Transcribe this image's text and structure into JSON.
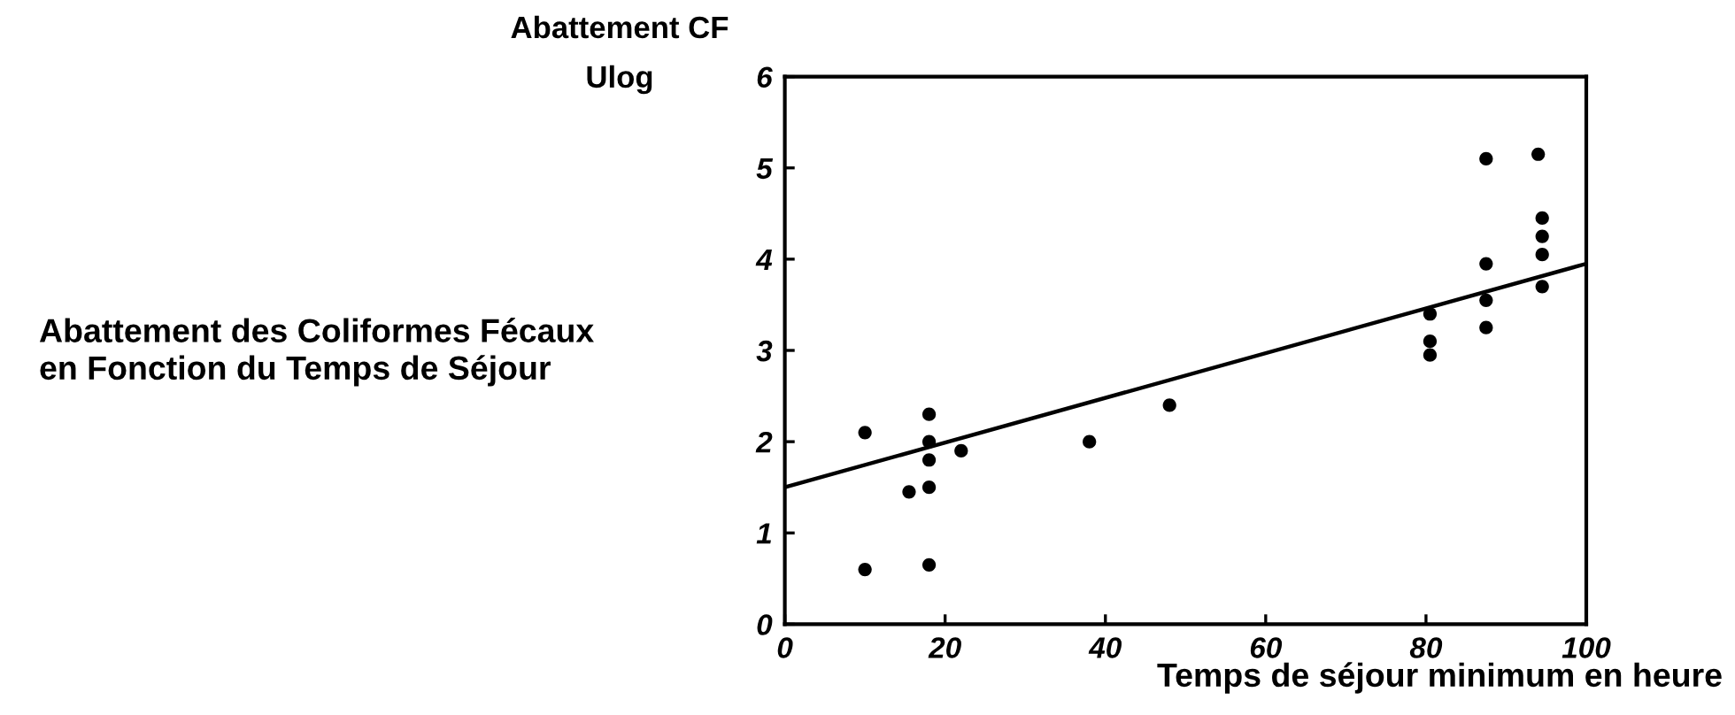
{
  "chart_data": {
    "type": "scatter",
    "title": "Abattement des Coliformes Fécaux\nen Fonction du Temps de Séjour",
    "xlabel": "Temps de séjour minimum en heure",
    "ylabel": "Abattement CF\nUlog",
    "xlim": [
      0,
      100
    ],
    "xticks": [
      0,
      20,
      40,
      60,
      80,
      100
    ],
    "ylim": [
      0,
      6
    ],
    "yticks": [
      0,
      1,
      2,
      3,
      4,
      5,
      6
    ],
    "grid": false,
    "series": [
      {
        "color": "#000000",
        "marker": "circle",
        "x": [
          10,
          10,
          18,
          18,
          18,
          18,
          18,
          15.5,
          22,
          38,
          48,
          80.5,
          80.5,
          80.5,
          87.5,
          87.5,
          87.5,
          87.5,
          94,
          94.5,
          94.5,
          94.5,
          94.5
        ],
        "values": [
          2.1,
          0.6,
          2.3,
          2.0,
          1.8,
          1.5,
          0.65,
          1.45,
          1.9,
          2.0,
          2.4,
          3.4,
          3.1,
          2.95,
          5.1,
          3.95,
          3.55,
          3.25,
          5.15,
          4.45,
          4.25,
          4.05,
          3.7
        ]
      },
      {
        "type": "line",
        "color": "#000000",
        "marker": "none",
        "line_style": "solid",
        "x": [
          0,
          100
        ],
        "values": [
          1.5,
          3.95
        ]
      }
    ]
  }
}
